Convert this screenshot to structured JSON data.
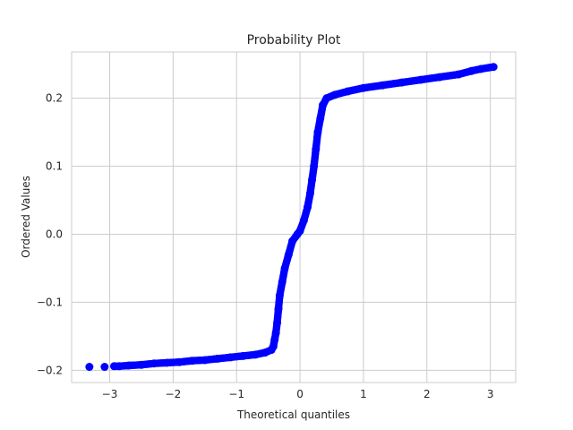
{
  "chart_data": {
    "type": "scatter",
    "title": "Probability Plot",
    "xlabel": "Theoretical quantiles",
    "ylabel": "Ordered Values",
    "xlim": [
      -3.6,
      3.4
    ],
    "ylim": [
      -0.218,
      0.268
    ],
    "grid": true,
    "x_ticks": [
      -3,
      -2,
      -1,
      0,
      1,
      2,
      3
    ],
    "x_tick_labels": [
      "−3",
      "−2",
      "−1",
      "0",
      "1",
      "2",
      "3"
    ],
    "y_ticks": [
      -0.2,
      -0.1,
      0.0,
      0.1,
      0.2
    ],
    "y_tick_labels": [
      "−0.2",
      "−0.1",
      "0.0",
      "0.1",
      "0.2"
    ],
    "marker_color": "#0000ff",
    "series": [
      {
        "values": [
          {
            "x": -3.32,
            "y": -0.195
          },
          {
            "x": -3.08,
            "y": -0.195
          },
          {
            "x": -2.93,
            "y": -0.194
          },
          {
            "x": -2.85,
            "y": -0.194
          },
          {
            "x": -2.7,
            "y": -0.193
          },
          {
            "x": -2.5,
            "y": -0.192
          },
          {
            "x": -2.3,
            "y": -0.19
          },
          {
            "x": -2.1,
            "y": -0.189
          },
          {
            "x": -1.9,
            "y": -0.188
          },
          {
            "x": -1.7,
            "y": -0.186
          },
          {
            "x": -1.5,
            "y": -0.185
          },
          {
            "x": -1.3,
            "y": -0.183
          },
          {
            "x": -1.1,
            "y": -0.181
          },
          {
            "x": -0.9,
            "y": -0.179
          },
          {
            "x": -0.7,
            "y": -0.177
          },
          {
            "x": -0.55,
            "y": -0.174
          },
          {
            "x": -0.45,
            "y": -0.17
          },
          {
            "x": -0.42,
            "y": -0.165
          },
          {
            "x": -0.4,
            "y": -0.155
          },
          {
            "x": -0.38,
            "y": -0.145
          },
          {
            "x": -0.36,
            "y": -0.13
          },
          {
            "x": -0.34,
            "y": -0.11
          },
          {
            "x": -0.32,
            "y": -0.09
          },
          {
            "x": -0.28,
            "y": -0.07
          },
          {
            "x": -0.24,
            "y": -0.05
          },
          {
            "x": -0.18,
            "y": -0.03
          },
          {
            "x": -0.12,
            "y": -0.01
          },
          {
            "x": -0.04,
            "y": 0.0
          },
          {
            "x": 0.0,
            "y": 0.005
          },
          {
            "x": 0.06,
            "y": 0.02
          },
          {
            "x": 0.12,
            "y": 0.04
          },
          {
            "x": 0.16,
            "y": 0.06
          },
          {
            "x": 0.19,
            "y": 0.08
          },
          {
            "x": 0.22,
            "y": 0.1
          },
          {
            "x": 0.25,
            "y": 0.125
          },
          {
            "x": 0.28,
            "y": 0.15
          },
          {
            "x": 0.32,
            "y": 0.17
          },
          {
            "x": 0.36,
            "y": 0.19
          },
          {
            "x": 0.42,
            "y": 0.2
          },
          {
            "x": 0.55,
            "y": 0.205
          },
          {
            "x": 0.75,
            "y": 0.21
          },
          {
            "x": 1.0,
            "y": 0.215
          },
          {
            "x": 1.3,
            "y": 0.219
          },
          {
            "x": 1.6,
            "y": 0.223
          },
          {
            "x": 1.9,
            "y": 0.227
          },
          {
            "x": 2.2,
            "y": 0.231
          },
          {
            "x": 2.5,
            "y": 0.235
          },
          {
            "x": 2.7,
            "y": 0.24
          },
          {
            "x": 2.85,
            "y": 0.243
          },
          {
            "x": 3.05,
            "y": 0.246
          }
        ]
      }
    ]
  }
}
